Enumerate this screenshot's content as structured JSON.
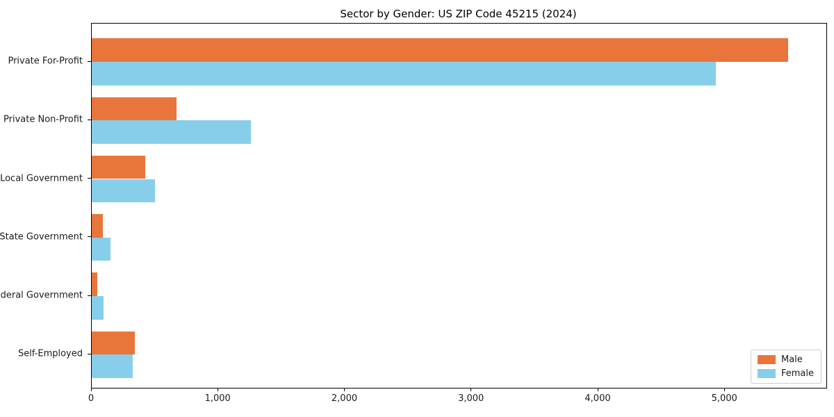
{
  "chart_data": {
    "type": "bar",
    "orientation": "horizontal",
    "title": "Sector by Gender: US ZIP Code 45215 (2024)",
    "xlabel": "",
    "ylabel": "",
    "categories": [
      "Private For-Profit",
      "Private Non-Profit",
      "Local Government",
      "State Government",
      "Federal Government",
      "Self-Employed"
    ],
    "series": [
      {
        "name": "Male",
        "color": "#E8763B",
        "values": [
          5500,
          670,
          420,
          90,
          45,
          340
        ]
      },
      {
        "name": "Female",
        "color": "#87CEEB",
        "values": [
          4930,
          1255,
          500,
          150,
          95,
          325
        ]
      }
    ],
    "xlim": [
      0,
      5800
    ],
    "xticks": [
      0,
      1000,
      2000,
      3000,
      4000,
      5000
    ],
    "xtick_labels": [
      "0",
      "1,000",
      "2,000",
      "3,000",
      "4,000",
      "5,000"
    ],
    "grid": false,
    "legend": {
      "position": "lower right",
      "entries": [
        "Male",
        "Female"
      ]
    },
    "colors": {
      "male": "#E8763B",
      "female": "#87CEEB",
      "axis": "#000000",
      "text": "#1a1a1a",
      "legend_border": "#cccccc",
      "background": "#ffffff"
    }
  }
}
